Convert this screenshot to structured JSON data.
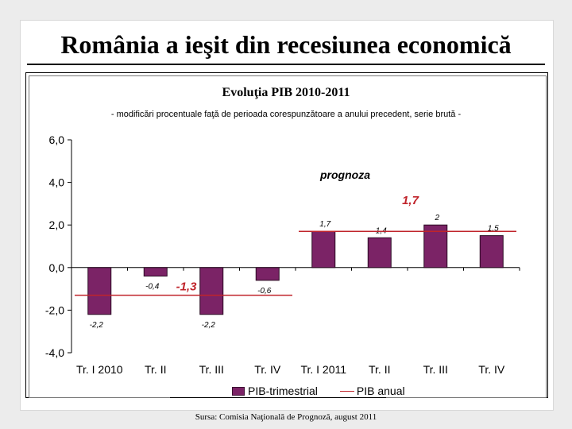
{
  "slide": {
    "title": "România a ieşit din recesiunea economică",
    "source": "Sursa: Comisia Naţională de Prognoză, august 2011"
  },
  "chart_data": {
    "type": "bar",
    "title": "Evoluţia PIB 2010-2011",
    "subtitle": "- modificări procentuale faţă de perioada corespunzătoare a anului precedent, serie brută -",
    "categories": [
      "Tr. I 2010",
      "Tr. II",
      "Tr. III",
      "Tr. IV",
      "Tr. I 2011",
      "Tr. II",
      "Tr. III",
      "Tr. IV"
    ],
    "series": [
      {
        "name": "PIB-trimestrial",
        "type": "bar",
        "values": [
          -2.2,
          -0.4,
          -2.2,
          -0.6,
          1.7,
          1.4,
          2.0,
          1.5
        ],
        "labels": [
          "-2,2",
          "-0,4",
          "-2,2",
          "-0,6",
          "1,7",
          "1,4",
          "2",
          "1,5"
        ]
      },
      {
        "name": "PIB anual",
        "type": "line",
        "segments": [
          {
            "from": 0,
            "to": 3,
            "value": -1.3,
            "label": "-1,3"
          },
          {
            "from": 4,
            "to": 7,
            "value": 1.7,
            "label": "1,7"
          }
        ]
      }
    ],
    "yticks": [
      "6,0",
      "4,0",
      "2,0",
      "0,0",
      "-2,0",
      "-4,0"
    ],
    "ytick_values": [
      6,
      4,
      2,
      0,
      -2,
      -4
    ],
    "ylim": [
      -4,
      6
    ],
    "annotation": "prognoza",
    "forecast_from_index": 4,
    "legend_position": "bottom",
    "colors": {
      "bar": "#7b2366",
      "line": "#c0242b",
      "annotation": "#c0242b"
    }
  }
}
